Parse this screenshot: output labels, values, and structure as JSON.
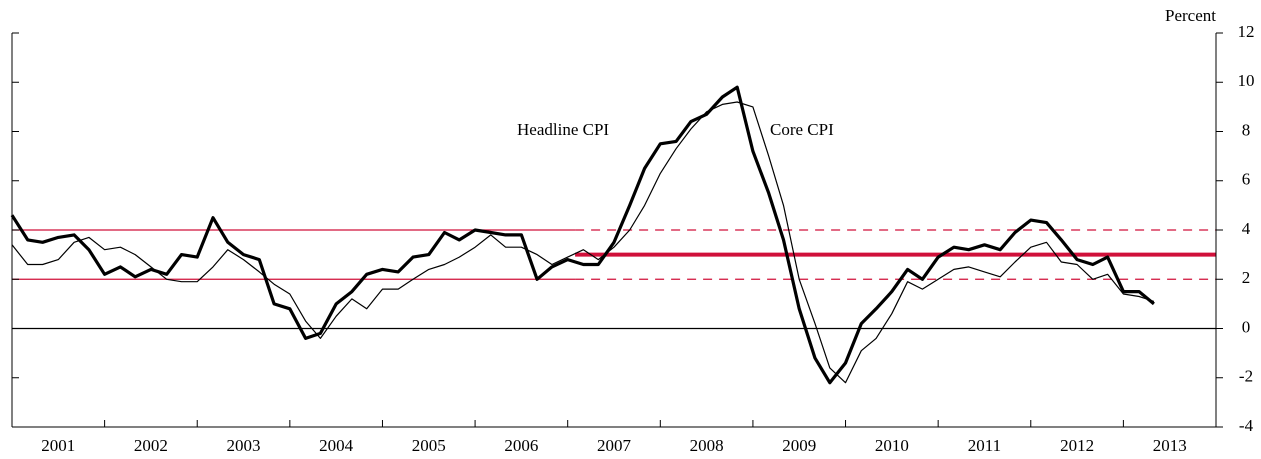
{
  "chart_data": {
    "type": "line",
    "y_axis_label": "Percent",
    "annotations": [
      "Headline CPI",
      "Core CPI"
    ],
    "categories": [
      "2001",
      "2002",
      "2003",
      "2004",
      "2005",
      "2006",
      "2007",
      "2008",
      "2009",
      "2010",
      "2011",
      "2012",
      "2013"
    ],
    "x": [
      2001,
      2001.17,
      2001.33,
      2001.5,
      2001.67,
      2001.83,
      2002,
      2002.17,
      2002.33,
      2002.5,
      2002.67,
      2002.83,
      2003,
      2003.17,
      2003.33,
      2003.5,
      2003.67,
      2003.83,
      2004,
      2004.17,
      2004.33,
      2004.5,
      2004.67,
      2004.83,
      2005,
      2005.17,
      2005.33,
      2005.5,
      2005.67,
      2005.83,
      2006,
      2006.17,
      2006.33,
      2006.5,
      2006.67,
      2006.83,
      2007,
      2007.17,
      2007.33,
      2007.5,
      2007.67,
      2007.83,
      2008,
      2008.17,
      2008.33,
      2008.5,
      2008.67,
      2008.83,
      2009,
      2009.17,
      2009.33,
      2009.5,
      2009.67,
      2009.83,
      2010,
      2010.17,
      2010.33,
      2010.5,
      2010.67,
      2010.83,
      2011,
      2011.17,
      2011.33,
      2011.5,
      2011.67,
      2011.83,
      2012,
      2012.17,
      2012.33,
      2012.5,
      2012.67,
      2012.83,
      2013,
      2013.17,
      2013.33
    ],
    "series": [
      {
        "name": "Headline CPI",
        "color": "#000000",
        "width": 3.2,
        "values": [
          4.6,
          3.6,
          3.5,
          3.7,
          3.8,
          3.2,
          2.2,
          2.5,
          2.1,
          2.4,
          2.2,
          3.0,
          2.9,
          4.5,
          3.5,
          3.0,
          2.8,
          1.0,
          0.8,
          -0.4,
          -0.2,
          1.0,
          1.5,
          2.2,
          2.4,
          2.3,
          2.9,
          3.0,
          3.9,
          3.6,
          4.0,
          3.9,
          3.8,
          3.8,
          2.0,
          2.5,
          2.8,
          2.6,
          2.6,
          3.5,
          5.0,
          6.5,
          7.5,
          7.6,
          8.4,
          8.7,
          9.4,
          9.8,
          7.2,
          5.5,
          3.6,
          0.8,
          -1.2,
          -2.2,
          -1.4,
          0.2,
          0.8,
          1.5,
          2.4,
          2.0,
          2.9,
          3.3,
          3.2,
          3.4,
          3.2,
          3.9,
          4.4,
          4.3,
          3.6,
          2.8,
          2.6,
          2.9,
          1.5,
          1.5,
          1.0
        ]
      },
      {
        "name": "Core CPI",
        "color": "#000000",
        "width": 1.2,
        "values": [
          3.4,
          2.6,
          2.6,
          2.8,
          3.5,
          3.7,
          3.2,
          3.3,
          3.0,
          2.5,
          2.0,
          1.9,
          1.9,
          2.5,
          3.2,
          2.8,
          2.3,
          1.8,
          1.4,
          0.3,
          -0.4,
          0.5,
          1.2,
          0.8,
          1.6,
          1.6,
          2.0,
          2.4,
          2.6,
          2.9,
          3.3,
          3.8,
          3.3,
          3.3,
          3.0,
          2.6,
          2.9,
          3.2,
          2.8,
          3.3,
          4.0,
          5.0,
          6.3,
          7.3,
          8.1,
          8.8,
          9.1,
          9.2,
          9.0,
          7.0,
          5.0,
          2.0,
          0.2,
          -1.6,
          -2.2,
          -0.9,
          -0.4,
          0.6,
          1.9,
          1.6,
          2.0,
          2.4,
          2.5,
          2.3,
          2.1,
          2.7,
          3.3,
          3.5,
          2.7,
          2.6,
          2.0,
          2.2,
          1.4,
          1.3,
          1.1
        ]
      }
    ],
    "reference_lines": [
      {
        "value": 4,
        "from": 2001,
        "to": 2007.08,
        "style": "solid",
        "width": 1.2,
        "color": "#d0103a"
      },
      {
        "value": 2,
        "from": 2001,
        "to": 2007.08,
        "style": "solid",
        "width": 1.2,
        "color": "#d0103a"
      },
      {
        "value": 3,
        "from": 2007.08,
        "to": 2014,
        "style": "solid",
        "width": 4,
        "color": "#d0103a"
      },
      {
        "value": 4,
        "from": 2007.08,
        "to": 2014,
        "style": "dashed",
        "width": 1.2,
        "color": "#d0103a"
      },
      {
        "value": 2,
        "from": 2007.08,
        "to": 2014,
        "style": "dashed",
        "width": 1.2,
        "color": "#d0103a"
      }
    ],
    "zero_line": 0,
    "xlim": [
      2001,
      2014
    ],
    "xticks": [
      2001,
      2002,
      2003,
      2004,
      2005,
      2006,
      2007,
      2008,
      2009,
      2010,
      2011,
      2012,
      2013,
      2014
    ],
    "ylim": [
      -4,
      12
    ],
    "yticks": [
      -4,
      -2,
      0,
      2,
      4,
      6,
      8,
      10,
      12
    ]
  }
}
